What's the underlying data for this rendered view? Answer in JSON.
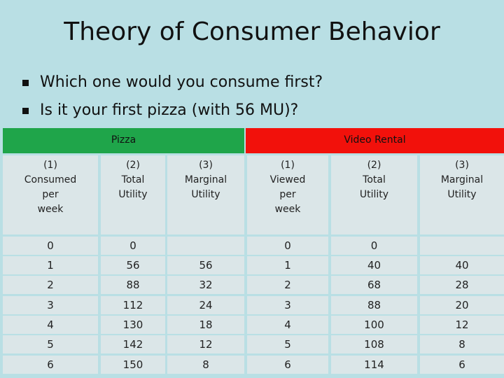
{
  "title": "Theory of Consumer Behavior",
  "bullets": [
    "Which one would you consume first?",
    "Is it your first pizza (with 56 MU)?"
  ],
  "table": {
    "group_pizza": "Pizza",
    "group_video": "Video Rental",
    "colors": {
      "pizza": "#1fa54a",
      "video": "#f2110b",
      "cell": "#dbe6e8",
      "background": "#b9dfe4"
    },
    "headers": [
      "(1)\nConsumed\nper\nweek",
      "(2)\nTotal\nUtility",
      "(3)\nMarginal\nUtility",
      "(1)\nViewed\nper\nweek",
      "(2)\nTotal\nUtility",
      "(3)\nMarginal\nUtility"
    ],
    "rows": [
      [
        "0",
        "0",
        "",
        "0",
        "0",
        ""
      ],
      [
        "1",
        "56",
        "56",
        "1",
        "40",
        "40"
      ],
      [
        "2",
        "88",
        "32",
        "2",
        "68",
        "28"
      ],
      [
        "3",
        "112",
        "24",
        "3",
        "88",
        "20"
      ],
      [
        "4",
        "130",
        "18",
        "4",
        "100",
        "12"
      ],
      [
        "5",
        "142",
        "12",
        "5",
        "108",
        "8"
      ],
      [
        "6",
        "150",
        "8",
        "6",
        "114",
        "6"
      ]
    ]
  }
}
